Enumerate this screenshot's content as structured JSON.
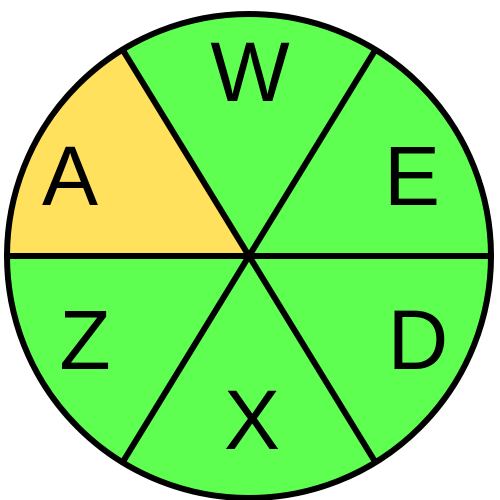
{
  "wheel": {
    "sectors": [
      {
        "label": "W",
        "color": "#5eff51",
        "highlighted": false
      },
      {
        "label": "E",
        "color": "#5eff51",
        "highlighted": false
      },
      {
        "label": "D",
        "color": "#5eff51",
        "highlighted": false
      },
      {
        "label": "X",
        "color": "#5eff51",
        "highlighted": false
      },
      {
        "label": "Z",
        "color": "#5eff51",
        "highlighted": false
      },
      {
        "label": "A",
        "color": "#ffe15e",
        "highlighted": true
      }
    ],
    "outline_color": "#000000"
  }
}
